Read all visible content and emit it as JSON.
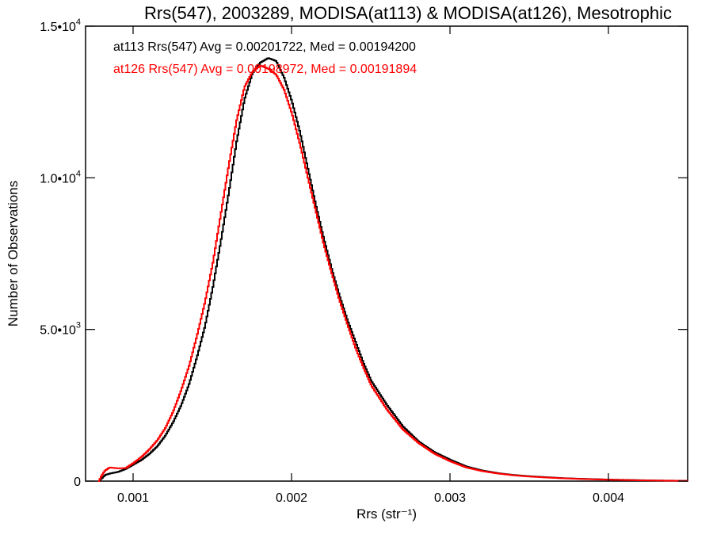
{
  "chart_data": {
    "type": "line",
    "title": "Rrs(547), 2003289, MODISA(at113) & MODISA(at126), Mesotrophic",
    "xlabel": "Rrs (str⁻¹)",
    "ylabel": "Number of Observations",
    "xlim": [
      0.0007,
      0.0045
    ],
    "ylim": [
      0,
      15000
    ],
    "x_ticks": [
      {
        "value": 0.001,
        "label": "0.001"
      },
      {
        "value": 0.002,
        "label": "0.002"
      },
      {
        "value": 0.003,
        "label": "0.003"
      },
      {
        "value": 0.004,
        "label": "0.004"
      }
    ],
    "y_ticks": [
      {
        "value": 0,
        "mantissa": "0",
        "exponent": ""
      },
      {
        "value": 5000,
        "mantissa": "5.0•10",
        "exponent": "3"
      },
      {
        "value": 10000,
        "mantissa": "1.0•10",
        "exponent": "4"
      },
      {
        "value": 15000,
        "mantissa": "1.5•10",
        "exponent": "4"
      }
    ],
    "grid": false,
    "legend_position": "top-left",
    "series": [
      {
        "name": "at113",
        "color": "#000000",
        "legend_text": "at113 Rrs(547) Avg = 0.00201722, Med = 0.00194200",
        "x": [
          0.00078,
          0.0008,
          0.00082,
          0.00085,
          0.0009,
          0.00095,
          0.001,
          0.00105,
          0.0011,
          0.00115,
          0.0012,
          0.00125,
          0.0013,
          0.00135,
          0.0014,
          0.00145,
          0.0015,
          0.00155,
          0.0016,
          0.00165,
          0.0017,
          0.00175,
          0.0018,
          0.00185,
          0.0019,
          0.00195,
          0.002,
          0.00205,
          0.0021,
          0.00215,
          0.0022,
          0.00225,
          0.0023,
          0.00235,
          0.0024,
          0.00245,
          0.0025,
          0.0026,
          0.0027,
          0.0028,
          0.0029,
          0.003,
          0.0031,
          0.0032,
          0.0033,
          0.0034,
          0.0035,
          0.0036,
          0.0037,
          0.0038,
          0.0039,
          0.004,
          0.0041,
          0.0042,
          0.0043,
          0.0044,
          0.0045
        ],
        "y": [
          0,
          100,
          200,
          250,
          300,
          400,
          550,
          700,
          900,
          1150,
          1500,
          1950,
          2500,
          3200,
          4100,
          5100,
          6400,
          7900,
          9500,
          11200,
          12600,
          13450,
          13800,
          13950,
          13850,
          13300,
          12500,
          11500,
          10300,
          9100,
          8000,
          7000,
          6100,
          5300,
          4600,
          3900,
          3300,
          2500,
          1800,
          1300,
          950,
          700,
          480,
          350,
          260,
          200,
          160,
          130,
          100,
          80,
          65,
          50,
          40,
          30,
          20,
          15,
          10
        ]
      },
      {
        "name": "at126",
        "color": "#ff0000",
        "legend_text": "at126 Rrs(547) Avg = 0.00198972, Med = 0.00191894",
        "x": [
          0.00078,
          0.0008,
          0.00082,
          0.00085,
          0.0009,
          0.00095,
          0.001,
          0.00105,
          0.0011,
          0.00115,
          0.0012,
          0.00125,
          0.0013,
          0.00135,
          0.0014,
          0.00145,
          0.0015,
          0.00155,
          0.0016,
          0.00165,
          0.0017,
          0.00175,
          0.0018,
          0.00185,
          0.0019,
          0.00195,
          0.002,
          0.00205,
          0.0021,
          0.00215,
          0.0022,
          0.00225,
          0.0023,
          0.00235,
          0.0024,
          0.00245,
          0.0025,
          0.0026,
          0.0027,
          0.0028,
          0.0029,
          0.003,
          0.0031,
          0.0032,
          0.0033,
          0.0034,
          0.0035,
          0.0036,
          0.0037,
          0.0038,
          0.0039,
          0.004,
          0.0041,
          0.0042,
          0.0043,
          0.0044,
          0.0045
        ],
        "y": [
          0,
          200,
          350,
          450,
          420,
          430,
          600,
          800,
          1050,
          1350,
          1750,
          2300,
          3000,
          3800,
          4800,
          5900,
          7200,
          8800,
          10400,
          11900,
          13000,
          13500,
          13700,
          13600,
          13400,
          12900,
          12100,
          11100,
          10000,
          8900,
          7800,
          6850,
          5950,
          5150,
          4400,
          3750,
          3150,
          2350,
          1700,
          1250,
          900,
          650,
          450,
          330,
          250,
          190,
          150,
          120,
          95,
          75,
          60,
          45,
          35,
          25,
          18,
          12,
          8
        ]
      }
    ]
  }
}
